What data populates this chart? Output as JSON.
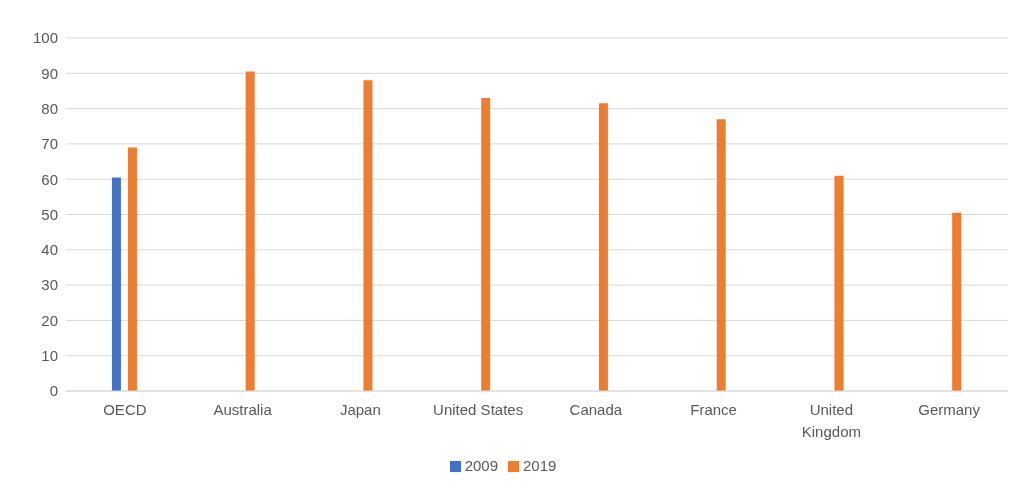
{
  "chart_data": {
    "type": "bar",
    "categories": [
      "OECD",
      "Australia",
      "Japan",
      "United States",
      "Canada",
      "France",
      "United Kingdom",
      "Germany"
    ],
    "series": [
      {
        "name": "2009",
        "color": "#4472c4",
        "values": [
          60.5,
          null,
          null,
          null,
          null,
          null,
          null,
          null
        ]
      },
      {
        "name": "2019",
        "color": "#ed7d31",
        "values": [
          69,
          90.5,
          88,
          83,
          81.5,
          77,
          61,
          50.5
        ]
      }
    ],
    "ylim": [
      0,
      100
    ],
    "yticks": [
      0,
      10,
      20,
      30,
      40,
      50,
      60,
      70,
      80,
      90,
      100
    ],
    "grid": "y",
    "legend": "bottom"
  }
}
